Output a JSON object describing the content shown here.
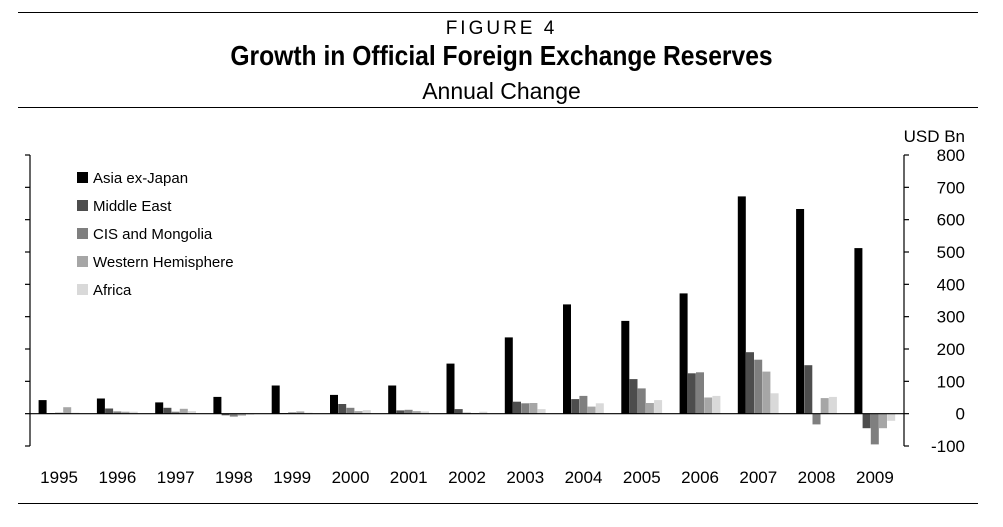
{
  "figure_label": "FIGURE 4",
  "title": "Growth in Official Foreign Exchange Reserves",
  "subtitle": "Annual Change",
  "chart_data": {
    "type": "bar",
    "title": "Growth in Official Foreign Exchange Reserves",
    "subtitle": "Annual Change",
    "unit_label": "USD Bn",
    "categories": [
      "1995",
      "1996",
      "1997",
      "1998",
      "1999",
      "2000",
      "2001",
      "2002",
      "2003",
      "2004",
      "2005",
      "2006",
      "2007",
      "2008",
      "2009"
    ],
    "ylim": [
      -100,
      800
    ],
    "yticks": [
      800,
      700,
      600,
      500,
      400,
      300,
      200,
      100,
      0,
      -100
    ],
    "ytick_labels": [
      "800",
      "700",
      "600",
      "500",
      "400",
      "300",
      "200",
      "100",
      "0",
      "-100"
    ],
    "y_axis_side": "right",
    "legend_position": "top-left",
    "grid": false,
    "series": [
      {
        "name": "Asia ex-Japan",
        "color": "#000000",
        "values": [
          42,
          47,
          35,
          52,
          87,
          58,
          87,
          155,
          236,
          338,
          287,
          372,
          672,
          633,
          512
        ]
      },
      {
        "name": "Middle East",
        "color": "#4d4d4d",
        "values": [
          2,
          16,
          18,
          -5,
          2,
          30,
          10,
          14,
          37,
          45,
          107,
          125,
          190,
          150,
          -45
        ]
      },
      {
        "name": "CIS and Mongolia",
        "color": "#7f7f7f",
        "values": [
          3,
          7,
          6,
          -9,
          4,
          18,
          12,
          3,
          32,
          55,
          78,
          128,
          167,
          -33,
          -95
        ]
      },
      {
        "name": "Western Hemisphere",
        "color": "#a6a6a6",
        "values": [
          20,
          6,
          15,
          -6,
          7,
          8,
          8,
          2,
          33,
          22,
          33,
          50,
          130,
          48,
          -45
        ]
      },
      {
        "name": "Africa",
        "color": "#d9d9d9",
        "values": [
          3,
          6,
          8,
          -3,
          3,
          11,
          7,
          6,
          14,
          32,
          42,
          55,
          63,
          52,
          -22
        ]
      }
    ]
  }
}
